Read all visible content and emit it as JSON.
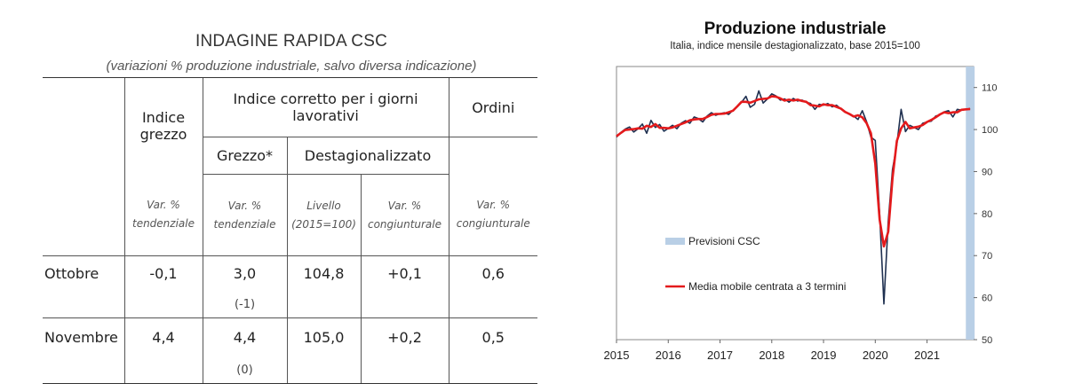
{
  "table": {
    "title": "INDAGINE RAPIDA CSC",
    "subtitle": "(variazioni % produzione industriale, salvo diversa indicazione)",
    "headers": {
      "indice_grezzo": "Indice grezzo",
      "indice_corretto": "Indice corretto per i giorni lavorativi",
      "ordini": "Ordini",
      "grezzo_star": "Grezzo*",
      "destagionalizzato": "Destagionalizzato"
    },
    "units": {
      "col1": "Var. % tendenziale",
      "col2": "Var. % tendenziale",
      "col3": "Livello (2015=100)",
      "col4": "Var. % congiunturale",
      "col5": "Var. % congiunturale"
    },
    "rows": [
      {
        "label": "Ottobre",
        "grezzo": "-0,1",
        "corr_grezzo": "3,0",
        "corr_grezzo_note": "(-1)",
        "livello": "104,8",
        "var_cong": "+0,1",
        "ordini": "0,6"
      },
      {
        "label": "Novembre",
        "grezzo": "4,4",
        "corr_grezzo": "4,4",
        "corr_grezzo_note": "(0)",
        "livello": "105,0",
        "var_cong": "+0,2",
        "ordini": "0,5"
      }
    ]
  },
  "chart": {
    "title": "Produzione industriale",
    "subtitle": "Italia, indice mensile destagionalizzato, base 2015=100"
  },
  "chart_data": {
    "type": "line",
    "title": "Produzione industriale",
    "subtitle": "Italia, indice mensile destagionalizzato, base 2015=100",
    "x_start": 2015.0,
    "x_step_months": 1,
    "xlim": [
      2015,
      2021.9
    ],
    "ylim": [
      50,
      115
    ],
    "x_ticks": [
      "2015",
      "2016",
      "2017",
      "2018",
      "2019",
      "2020",
      "2021"
    ],
    "y_ticks": [
      "50",
      "60",
      "70",
      "80",
      "90",
      "100",
      "110"
    ],
    "legend": [
      "Previsioni CSC",
      "Media mobile centrata a 3 termini"
    ],
    "forecast_band": [
      2021.75,
      2021.92
    ],
    "series": [
      {
        "name": "Indice mensile destagionalizzato",
        "color": "#1f3050",
        "values": [
          98.2,
          99.3,
          100.1,
          100.6,
          99.4,
          100.2,
          101.3,
          99.1,
          102.2,
          100.5,
          101.2,
          99.6,
          100.3,
          101.0,
          100.2,
          101.5,
          102.1,
          101.5,
          103.0,
          102.6,
          101.8,
          103.2,
          104.0,
          103.4,
          103.8,
          104.0,
          103.6,
          104.6,
          105.4,
          106.5,
          107.9,
          105.3,
          106.0,
          109.2,
          106.3,
          107.3,
          108.5,
          108.0,
          107.0,
          107.3,
          106.5,
          107.4,
          106.8,
          107.0,
          106.5,
          106.2,
          104.8,
          106.0,
          105.8,
          106.2,
          105.4,
          105.8,
          104.9,
          104.2,
          103.6,
          103.2,
          102.4,
          104.5,
          101.8,
          98.2,
          97.4,
          80.0,
          58.5,
          78.2,
          90.5,
          96.5,
          104.8,
          99.5,
          101.0,
          100.5,
          100.0,
          101.5,
          101.8,
          102.0,
          103.2,
          103.5,
          104.2,
          104.5,
          103.0,
          104.8,
          104.6,
          104.8,
          105.0
        ]
      },
      {
        "name": "Media mobile centrata a 3 termini",
        "color": "#e41a1c",
        "values": [
          98.4,
          99.2,
          99.9,
          100.0,
          100.1,
          100.3,
          100.2,
          100.9,
          100.6,
          101.3,
          100.4,
          100.4,
          100.3,
          100.5,
          100.9,
          101.3,
          101.7,
          102.2,
          102.4,
          102.5,
          102.5,
          103.0,
          103.5,
          103.7,
          103.7,
          103.8,
          104.1,
          104.5,
          105.5,
          106.6,
          106.6,
          106.4,
          106.8,
          107.2,
          107.3,
          107.4,
          107.9,
          107.8,
          107.4,
          106.9,
          107.1,
          106.9,
          107.1,
          106.8,
          106.6,
          105.8,
          105.7,
          105.5,
          106.0,
          105.8,
          105.8,
          105.4,
          105.0,
          104.2,
          103.7,
          103.1,
          103.4,
          102.9,
          101.5,
          99.1,
          91.9,
          78.6,
          72.2,
          75.7,
          88.4,
          97.3,
          100.3,
          101.8,
          100.3,
          100.5,
          100.7,
          101.1,
          101.8,
          102.3,
          102.9,
          103.6,
          104.1,
          103.9,
          104.1,
          104.1,
          104.7,
          104.8,
          104.9
        ]
      }
    ]
  }
}
